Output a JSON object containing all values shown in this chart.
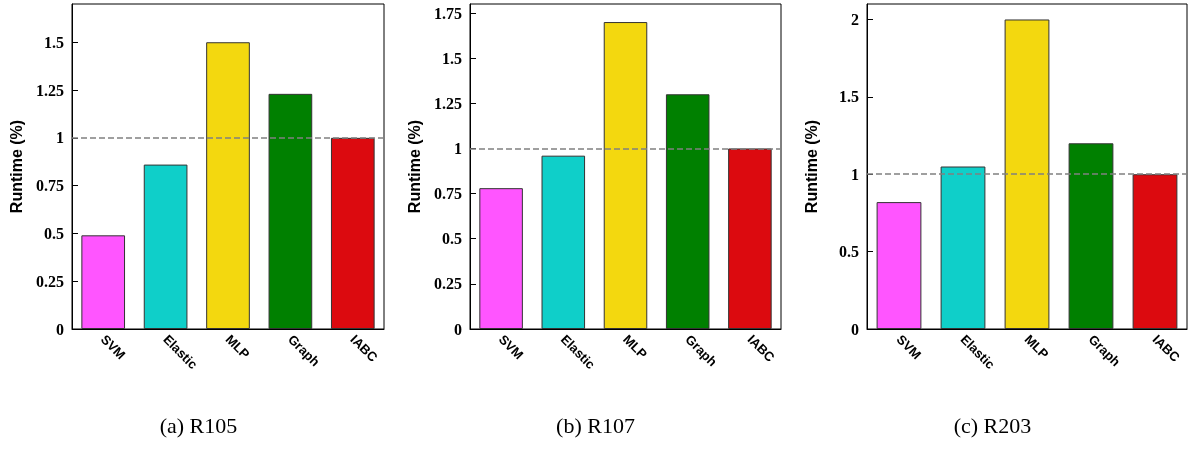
{
  "chart_data": [
    {
      "type": "bar",
      "title": "(a) R105",
      "ylabel": "Runtime (%)",
      "categories": [
        "SVM",
        "Elastic",
        "MLP",
        "Graph",
        "IABC"
      ],
      "values": [
        0.49,
        0.86,
        1.5,
        1.23,
        1.0
      ],
      "colors": [
        "#ff55ff",
        "#0fcfc9",
        "#f3d80f",
        "#008000",
        "#dc0a0f"
      ],
      "ylim": [
        0,
        1.7
      ],
      "yticks": [
        0,
        0.25,
        0.5,
        0.75,
        1,
        1.25,
        1.5
      ],
      "grid": false,
      "ref_lines": [
        {
          "axis": "y",
          "value": 1,
          "color": "#808080",
          "line_style": "dashed"
        }
      ]
    },
    {
      "type": "bar",
      "title": "(b) R107",
      "ylabel": "Runtime (%)",
      "categories": [
        "SVM",
        "Elastic",
        "MLP",
        "Graph",
        "IABC"
      ],
      "values": [
        0.78,
        0.96,
        1.7,
        1.3,
        1.0
      ],
      "colors": [
        "#ff55ff",
        "#0fcfc9",
        "#f3d80f",
        "#008000",
        "#dc0a0f"
      ],
      "ylim": [
        0,
        1.8
      ],
      "yticks": [
        0,
        0.25,
        0.5,
        0.75,
        1,
        1.25,
        1.5,
        1.75
      ],
      "grid": false,
      "ref_lines": [
        {
          "axis": "y",
          "value": 1,
          "color": "#808080",
          "line_style": "dashed"
        }
      ]
    },
    {
      "type": "bar",
      "title": "(c) R203",
      "ylabel": "Runtime (%)",
      "categories": [
        "SVM",
        "Elastic",
        "MLP",
        "Graph",
        "IABC"
      ],
      "values": [
        0.82,
        1.05,
        2.0,
        1.2,
        1.0
      ],
      "colors": [
        "#ff55ff",
        "#0fcfc9",
        "#f3d80f",
        "#008000",
        "#dc0a0f"
      ],
      "ylim": [
        0,
        2.1
      ],
      "yticks": [
        0,
        0.5,
        1,
        1.5,
        2
      ],
      "grid": false,
      "ref_lines": [
        {
          "axis": "y",
          "value": 1,
          "color": "#808080",
          "line_style": "dashed"
        }
      ]
    }
  ]
}
